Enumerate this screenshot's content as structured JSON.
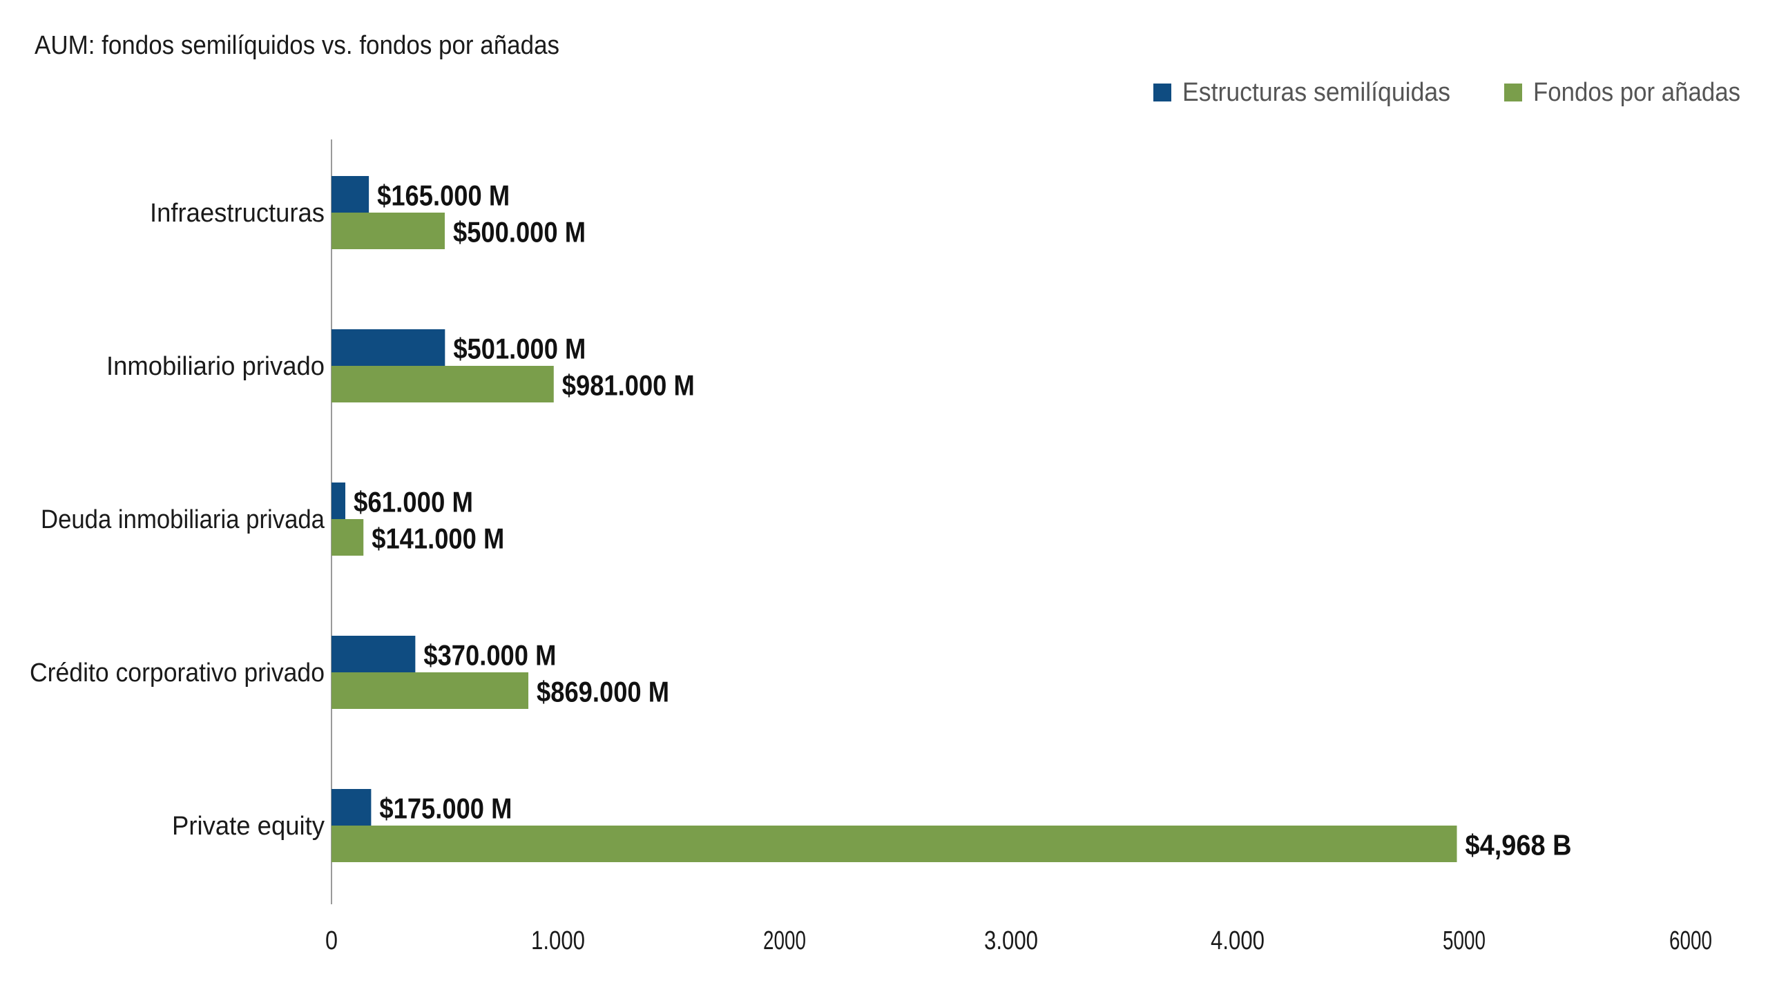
{
  "chart_data": {
    "type": "bar",
    "orientation": "horizontal",
    "title": "AUM: fondos semilíquidos vs. fondos por añadas",
    "categories": [
      "Infraestructuras",
      "Inmobiliario privado",
      "Deuda inmobiliaria privada",
      "Crédito corporativo privado",
      "Private equity"
    ],
    "series": [
      {
        "name": "Estructuras semilíquidas",
        "color": "#0f4c81",
        "values": [
          165,
          501,
          61,
          370,
          175
        ],
        "labels": [
          "$165.000 M",
          "$501.000 M",
          "$61.000 M",
          "$370.000 M",
          "$175.000 M"
        ]
      },
      {
        "name": "Fondos por añadas",
        "color": "#7a9e4b",
        "values": [
          500,
          981,
          141,
          869,
          4968
        ],
        "labels": [
          "$500.000 M",
          "$981.000 M",
          "$141.000 M",
          "$869.000 M",
          "$4,968 B"
        ]
      }
    ],
    "xlim": [
      0,
      6000
    ],
    "xticks": [
      0,
      1000,
      2000,
      3000,
      4000,
      5000,
      6000
    ],
    "xtick_labels": [
      "0",
      "1.000",
      "2000",
      "3.000",
      "4.000",
      "5000",
      "6000"
    ],
    "xlabel": "",
    "ylabel": "",
    "grid": false,
    "legend_position": "top-right"
  }
}
